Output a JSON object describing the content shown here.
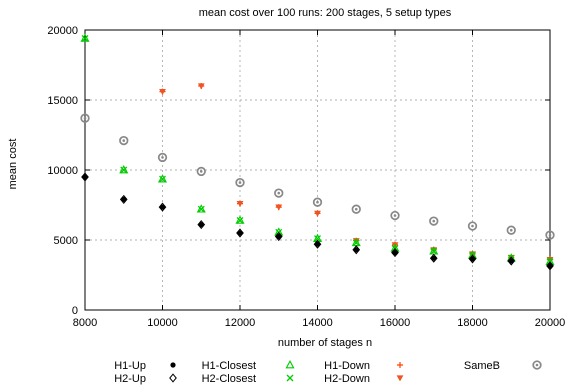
{
  "chart_data": {
    "type": "scatter",
    "title": "mean cost over 100 runs: 200 stages, 5 setup types",
    "xlabel": "number of stages n",
    "ylabel": "mean cost",
    "xlim": [
      8000,
      20000
    ],
    "ylim": [
      0,
      20000
    ],
    "xticks": [
      8000,
      10000,
      12000,
      14000,
      16000,
      18000,
      20000
    ],
    "yticks": [
      0,
      5000,
      10000,
      15000,
      20000
    ],
    "xtick_labels": [
      "8000",
      "10000",
      "12000",
      "14000",
      "16000",
      "18000",
      "20000"
    ],
    "ytick_labels": [
      "0",
      "5000",
      "10000",
      "15000",
      "20000"
    ],
    "grid": true,
    "legend_position": "bottom",
    "series": [
      {
        "name": "H1-Up",
        "marker": "filled-circle",
        "color": "#000000",
        "x": [
          8000,
          9000,
          10000,
          11000,
          12000,
          13000,
          14000,
          15000,
          16000,
          17000,
          18000,
          19000,
          20000
        ],
        "y": [
          9500,
          7900,
          7350,
          6100,
          5500,
          5250,
          4700,
          4300,
          4100,
          3700,
          3650,
          3500,
          3150
        ]
      },
      {
        "name": "H2-Up",
        "marker": "open-diamond",
        "color": "#000000",
        "x": [
          8000,
          9000,
          10000,
          11000,
          12000,
          13000,
          14000,
          15000,
          16000,
          17000,
          18000,
          19000,
          20000
        ],
        "y": [
          9500,
          7900,
          7350,
          6100,
          5500,
          5250,
          4700,
          4300,
          4100,
          3700,
          3650,
          3500,
          3150
        ]
      },
      {
        "name": "H1-Closest",
        "marker": "open-triangle",
        "color": "#00cc00",
        "x": [
          8000,
          9000,
          10000,
          11000,
          12000,
          13000,
          14000,
          15000,
          16000,
          17000,
          18000,
          19000,
          20000
        ],
        "y": [
          19400,
          10000,
          9350,
          7200,
          6400,
          5550,
          5100,
          4800,
          4400,
          4200,
          3900,
          3700,
          3450
        ]
      },
      {
        "name": "H2-Closest",
        "marker": "cross",
        "color": "#00cc00",
        "x": [
          8000,
          9000,
          10000,
          11000,
          12000,
          13000,
          14000,
          15000,
          16000,
          17000,
          18000,
          19000,
          20000
        ],
        "y": [
          19400,
          10000,
          9350,
          7200,
          6400,
          5550,
          5100,
          4800,
          4400,
          4200,
          3900,
          3700,
          3450
        ]
      },
      {
        "name": "H1-Down",
        "marker": "plus",
        "color": "#ff4000",
        "x": [
          10000,
          11000,
          12000,
          13000,
          14000,
          15000,
          16000,
          17000,
          18000,
          19000,
          20000
        ],
        "y": [
          15600,
          16000,
          7600,
          7350,
          6900,
          4950,
          4650,
          4300,
          4000,
          3750,
          3600
        ]
      },
      {
        "name": "H2-Down",
        "marker": "filled-triangle-down",
        "color": "#ee5522",
        "x": [
          10000,
          11000,
          12000,
          13000,
          14000,
          15000,
          16000,
          17000,
          18000,
          19000,
          20000
        ],
        "y": [
          15600,
          16000,
          7600,
          7350,
          6900,
          4950,
          4650,
          4300,
          4000,
          3750,
          3600
        ]
      },
      {
        "name": "SameB",
        "marker": "ring",
        "color": "#888888",
        "x": [
          8000,
          9000,
          10000,
          11000,
          12000,
          13000,
          14000,
          15000,
          16000,
          17000,
          18000,
          19000,
          20000
        ],
        "y": [
          13700,
          12100,
          10900,
          9900,
          9100,
          8350,
          7700,
          7200,
          6750,
          6350,
          6000,
          5700,
          5350
        ]
      }
    ]
  }
}
